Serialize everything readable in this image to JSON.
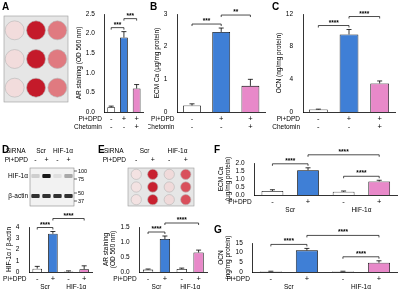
{
  "chart_data": [
    {
      "type": "bar",
      "y_label": "AR staining (OD 560 nm)",
      "categories": [
        [
          "-",
          "-"
        ],
        [
          "+",
          "-"
        ],
        [
          "+",
          "+"
        ]
      ],
      "row_labels": [
        "Pi+DPD",
        "Chetomin"
      ],
      "values": [
        0.12,
        1.9,
        0.6
      ],
      "errors": [
        0.03,
        0.15,
        0.1
      ],
      "colors": [
        "#ffffff",
        "#3f7fd6",
        "#e889c9"
      ],
      "ylim": [
        0,
        2.5
      ],
      "yticks": [
        {
          "value": 0,
          "label": "0.0"
        },
        {
          "value": 0.5,
          "label": "0.5"
        },
        {
          "value": 1,
          "label": "1.0"
        },
        {
          "value": 1.5,
          "label": "1.5"
        },
        {
          "value": 2,
          "label": "2.0"
        },
        {
          "value": 2.5,
          "label": "2.5"
        }
      ],
      "significance": [
        {
          "from": 0,
          "to": 1,
          "label": "***"
        },
        {
          "from": 1,
          "to": 2,
          "label": "***"
        }
      ]
    },
    {
      "type": "bar",
      "panel": "B",
      "y_label": "ECM Ca (μg/mg protein)",
      "categories": [
        [
          "-",
          "-"
        ],
        [
          "+",
          "-"
        ],
        [
          "+",
          "+"
        ]
      ],
      "row_labels": [
        "Pi+DPD",
        "Chetomin"
      ],
      "values": [
        0.2,
        2.45,
        0.8
      ],
      "errors": [
        0.05,
        0.12,
        0.2
      ],
      "colors": [
        "#ffffff",
        "#3f7fd6",
        "#e889c9"
      ],
      "ylim": [
        0,
        3
      ],
      "yticks": [
        0,
        1,
        2,
        3
      ],
      "significance": [
        {
          "from": 0,
          "to": 1,
          "label": "***"
        },
        {
          "from": 1,
          "to": 2,
          "label": "**"
        }
      ]
    },
    {
      "type": "bar",
      "panel": "C",
      "y_label": "OCN (ng/mg protein)",
      "categories": [
        [
          "-",
          "-"
        ],
        [
          "+",
          "-"
        ],
        [
          "+",
          "+"
        ]
      ],
      "row_labels": [
        "Pi+DPD",
        "Chetomin"
      ],
      "values": [
        0.3,
        9.5,
        3.5
      ],
      "errors": [
        0.05,
        0.6,
        0.3
      ],
      "colors": [
        "#ffffff",
        "#3f7fd6",
        "#e889c9"
      ],
      "ylim": [
        0,
        12
      ],
      "yticks": [
        0,
        4,
        8,
        12
      ],
      "significance": [
        {
          "from": 0,
          "to": 1,
          "label": "****"
        },
        {
          "from": 1,
          "to": 2,
          "label": "****"
        }
      ]
    },
    {
      "type": "bar",
      "y_label": "HIF-1α / β-actin",
      "categories": [
        [
          "-"
        ],
        [
          "+"
        ],
        [
          "-"
        ],
        [
          "+"
        ]
      ],
      "row_labels": [
        "Pi+DPD"
      ],
      "groups": [
        "Scr",
        "HIF-1α"
      ],
      "values": [
        0.3,
        3.4,
        0.05,
        0.25
      ],
      "errors": [
        0.2,
        0.2,
        0.05,
        0.3
      ],
      "colors": [
        "#ffffff",
        "#3f7fd6",
        "#ffffff",
        "#e889c9"
      ],
      "ylim": [
        0,
        4
      ],
      "yticks": [
        0,
        1,
        2,
        3,
        4
      ],
      "significance": [
        {
          "from": 0,
          "to": 1,
          "label": "****"
        },
        {
          "from": 1,
          "to": 3,
          "label": "****"
        }
      ]
    },
    {
      "type": "bar",
      "y_label": "AR staining (OD 560 nm)",
      "categories": [
        [
          "-"
        ],
        [
          "+"
        ],
        [
          "-"
        ],
        [
          "+"
        ]
      ],
      "row_labels": [
        "Pi+DPD"
      ],
      "groups": [
        "Scr",
        "HIF-1α"
      ],
      "values": [
        0.08,
        1.1,
        0.1,
        0.65
      ],
      "errors": [
        0.02,
        0.1,
        0.03,
        0.08
      ],
      "colors": [
        "#ffffff",
        "#3f7fd6",
        "#ffffff",
        "#e889c9"
      ],
      "ylim": [
        0,
        1.5
      ],
      "yticks": [
        {
          "value": 0,
          "label": "0.0"
        },
        {
          "value": 0.5,
          "label": "0.5"
        },
        {
          "value": 1,
          "label": "1.0"
        },
        {
          "value": 1.5,
          "label": "1.5"
        }
      ],
      "significance": [
        {
          "from": 0,
          "to": 1,
          "label": "****"
        },
        {
          "from": 1,
          "to": 3,
          "label": "****"
        }
      ]
    },
    {
      "type": "bar",
      "panel": "F",
      "y_label": "ECM Ca (μg/mg protein)",
      "categories": [
        [
          "-"
        ],
        [
          "+"
        ],
        [
          "-"
        ],
        [
          "+"
        ]
      ],
      "row_labels": [
        "Pi+DPD"
      ],
      "groups": [
        "Scr",
        "HIF-1α"
      ],
      "values": [
        0.25,
        1.55,
        0.2,
        0.85
      ],
      "errors": [
        0.08,
        0.15,
        0.05,
        0.07
      ],
      "colors": [
        "#ffffff",
        "#3f7fd6",
        "#ffffff",
        "#e889c9"
      ],
      "ylim": [
        0,
        2
      ],
      "yticks": [
        {
          "value": 0,
          "label": "0.0"
        },
        {
          "value": 0.5,
          "label": "0.5"
        },
        {
          "value": 1,
          "label": "1.0"
        },
        {
          "value": 1.5,
          "label": "1.5"
        },
        {
          "value": 2,
          "label": "2.0"
        }
      ],
      "significance": [
        {
          "from": 0,
          "to": 1,
          "label": "****"
        },
        {
          "from": 2,
          "to": 3,
          "label": "****"
        },
        {
          "from": 1,
          "to": 3,
          "label": "****"
        }
      ]
    },
    {
      "type": "bar",
      "panel": "G",
      "y_label": "OCN (ng/mg protein)",
      "categories": [
        [
          "-"
        ],
        [
          "+"
        ],
        [
          "-"
        ],
        [
          "+"
        ]
      ],
      "row_labels": [
        "Pi+DPD"
      ],
      "groups": [
        "Scr",
        "HIF-1α"
      ],
      "values": [
        0.3,
        11.2,
        0.3,
        4.8
      ],
      "errors": [
        0.1,
        1.0,
        0.1,
        1.0
      ],
      "colors": [
        "#ffffff",
        "#3f7fd6",
        "#ffffff",
        "#e889c9"
      ],
      "ylim": [
        0,
        15
      ],
      "yticks": [
        0,
        5,
        10,
        15
      ],
      "significance": [
        {
          "from": 0,
          "to": 1,
          "label": "****"
        },
        {
          "from": 2,
          "to": 3,
          "label": "****"
        },
        {
          "from": 1,
          "to": 3,
          "label": "****"
        }
      ]
    }
  ],
  "images": [
    {
      "panel": "A",
      "kind": "plate"
    },
    {
      "panel": "D",
      "kind": "blot",
      "header_group": "SiRNA",
      "groups": [
        "Scr",
        "HIF-1α"
      ],
      "header": [
        {
          "label": "Pi+DPD",
          "marks": [
            "-",
            "+",
            "-",
            "+"
          ]
        }
      ],
      "bands": [
        "HIF-1α",
        "β-actin"
      ],
      "markers": [
        100,
        75,
        50,
        37
      ]
    },
    {
      "panel": "E",
      "kind": "plate",
      "header_group": "SiRNA",
      "groups": [
        "Scr",
        "HIF-1α"
      ],
      "header": [
        {
          "label": "Pi+DPD",
          "marks": [
            "-",
            "+",
            "-",
            "+"
          ]
        }
      ]
    }
  ]
}
